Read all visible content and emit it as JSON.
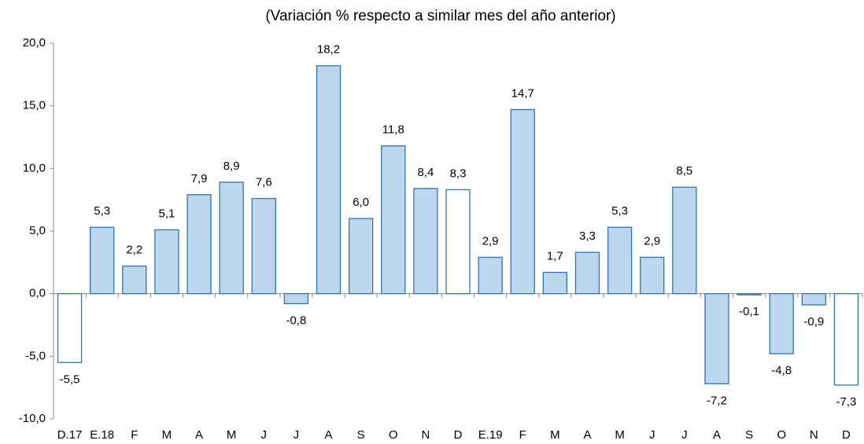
{
  "chart_data": {
    "type": "bar",
    "title": "(Variación % respecto a similar mes del año anterior)",
    "categories": [
      "D.17",
      "E.18",
      "F",
      "M",
      "A",
      "M",
      "J",
      "J",
      "A",
      "S",
      "O",
      "N",
      "D",
      "E.19",
      "F",
      "M",
      "A",
      "M",
      "J",
      "J",
      "A",
      "S",
      "O",
      "N",
      "D"
    ],
    "values": [
      -5.5,
      5.3,
      2.2,
      5.1,
      7.9,
      8.9,
      7.6,
      -0.8,
      18.2,
      6.0,
      11.8,
      8.4,
      8.3,
      2.9,
      14.7,
      1.7,
      3.3,
      5.3,
      2.9,
      8.5,
      -7.2,
      -0.1,
      -4.8,
      -0.9,
      -7.3
    ],
    "value_labels": [
      "-5,5",
      "5,3",
      "2,2",
      "5,1",
      "7,9",
      "8,9",
      "7,6",
      "-0,8",
      "18,2",
      "6,0",
      "11,8",
      "8,4",
      "8,3",
      "2,9",
      "14,7",
      "1,7",
      "3,3",
      "5,3",
      "2,9",
      "8,5",
      "-7,2",
      "-0,1",
      "-4,8",
      "-0,9",
      "-7,3"
    ],
    "colors": [
      "#ffffff",
      "#bdd7ee",
      "#bdd7ee",
      "#bdd7ee",
      "#bdd7ee",
      "#bdd7ee",
      "#bdd7ee",
      "#bdd7ee",
      "#bdd7ee",
      "#bdd7ee",
      "#bdd7ee",
      "#bdd7ee",
      "#ffffff",
      "#bdd7ee",
      "#bdd7ee",
      "#bdd7ee",
      "#bdd7ee",
      "#bdd7ee",
      "#bdd7ee",
      "#bdd7ee",
      "#bdd7ee",
      "#bdd7ee",
      "#bdd7ee",
      "#bdd7ee",
      "#ffffff"
    ],
    "edge_color": "#2e75b6",
    "ylim": [
      -10,
      20
    ],
    "yticks": [
      {
        "value": -10,
        "label": "-10,0"
      },
      {
        "value": -5,
        "label": "-5,0"
      },
      {
        "value": 0,
        "label": "0,0"
      },
      {
        "value": 5,
        "label": "5,0"
      },
      {
        "value": 10,
        "label": "10,0"
      },
      {
        "value": 15,
        "label": "15,0"
      },
      {
        "value": 20,
        "label": "20,0"
      }
    ]
  }
}
